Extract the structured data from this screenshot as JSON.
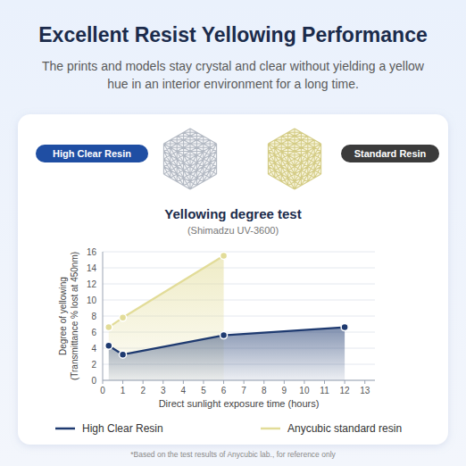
{
  "header": {
    "title": "Excellent Resist Yellowing Performance",
    "subtitle": "The prints and models stay crystal and clear without yielding a yellow hue in an interior environment for a long time."
  },
  "samples": [
    "High Clear Resin",
    "Standard Resin"
  ],
  "chart_data": {
    "type": "area",
    "title": "Yellowing degree test",
    "subtitle": "(Shimadzu UV-3600)",
    "x_label": "Direct sunlight exposure time (hours)",
    "y_label": "Degree of yellowing (Transmittance % lost at 450nm)",
    "xlim": [
      0,
      13.5
    ],
    "ylim": [
      0,
      16
    ],
    "xticks": [
      0,
      1,
      2,
      3,
      4,
      5,
      6,
      7,
      8,
      9,
      10,
      11,
      12,
      13
    ],
    "yticks": [
      0,
      2,
      4,
      6,
      8,
      10,
      12,
      14,
      16
    ],
    "grid": true,
    "legend": "bottom",
    "series": [
      {
        "name": "High Clear Resin",
        "color": "#1e3a70",
        "marker": "circle",
        "x": [
          0.3,
          1,
          6,
          12
        ],
        "values": [
          4.3,
          3.2,
          5.6,
          6.6
        ]
      },
      {
        "name": "Anycubic standard resin",
        "color": "#e2dc98",
        "marker": "circle",
        "x": [
          0.3,
          1,
          6
        ],
        "values": [
          6.6,
          7.8,
          15.5
        ]
      }
    ]
  },
  "footnote": "*Based on the test results of Anycubic lab., for reference only"
}
